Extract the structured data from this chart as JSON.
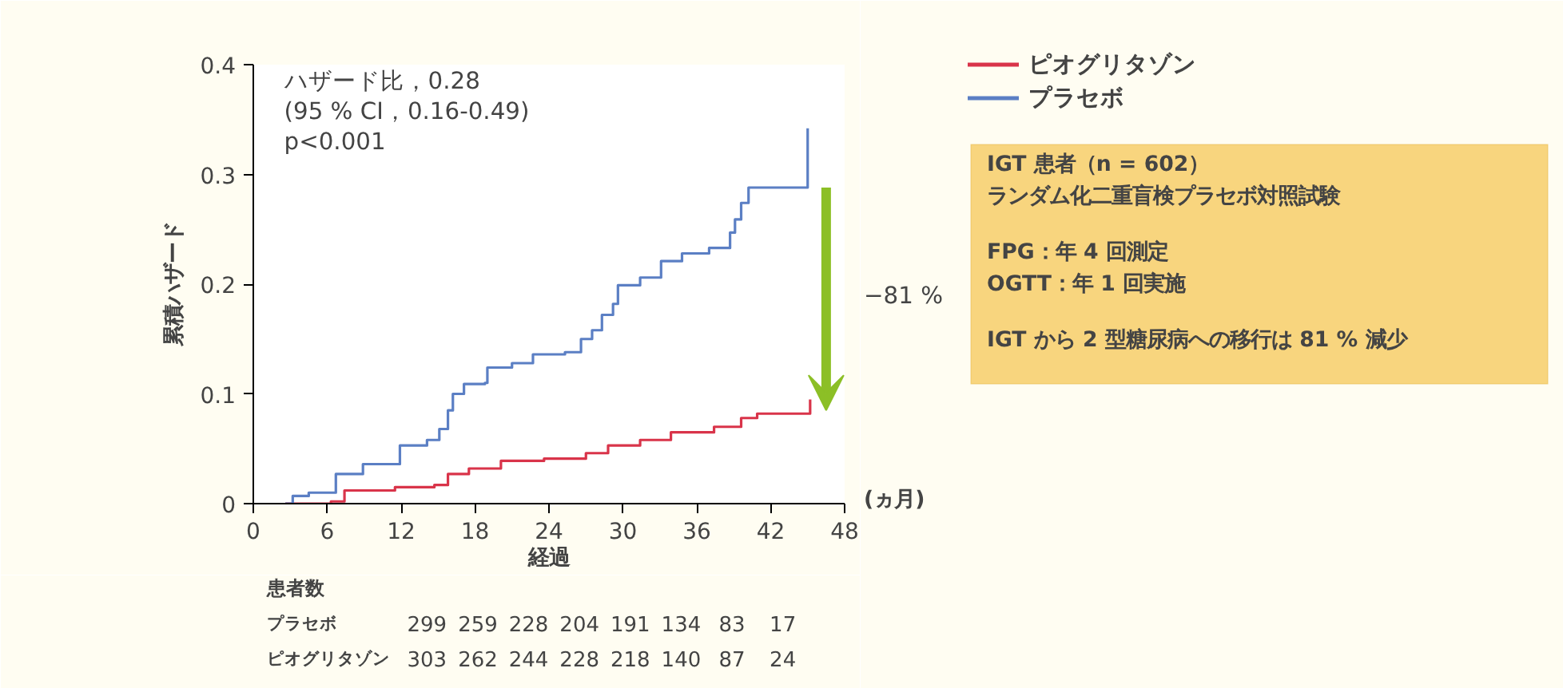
{
  "chart_data": {
    "type": "step",
    "xlabel": "経過",
    "ylabel": "累積ハザード",
    "xlim": [
      0,
      48
    ],
    "xticks": [
      0,
      6,
      12,
      18,
      24,
      30,
      36,
      42,
      48
    ],
    "ylim": [
      0,
      0.4
    ],
    "yticks": [
      0,
      0.1,
      0.2,
      0.3,
      0.4
    ],
    "grid": false,
    "legend": "top right",
    "series": [
      {
        "name": "ピオグリタゾン",
        "color": "#d9344a",
        "x": [
          2.6,
          6.3,
          7.4,
          11.5,
          14.7,
          15.8,
          17.5,
          20.1,
          23.6,
          27.0,
          28.8,
          31.4,
          33.9,
          37.4,
          39.6,
          40.9,
          45.0,
          45.2
        ],
        "values": [
          0,
          0.002,
          0.012,
          0.015,
          0.017,
          0.027,
          0.032,
          0.039,
          0.041,
          0.046,
          0.053,
          0.058,
          0.065,
          0.07,
          0.078,
          0.082,
          0.082,
          0.095
        ]
      },
      {
        "name": "プラセボ",
        "color": "#5b7fc4",
        "x": [
          2.6,
          3.2,
          4.5,
          6.7,
          8.9,
          11.9,
          14.1,
          15.1,
          15.8,
          16.2,
          17.1,
          18.8,
          19.0,
          21.0,
          22.7,
          25.3,
          26.6,
          27.5,
          28.3,
          29.2,
          29.6,
          31.4,
          33.1,
          34.8,
          37.0,
          38.7,
          39.1,
          39.6,
          40.2,
          44.8,
          45.0
        ],
        "values": [
          0,
          0.007,
          0.01,
          0.027,
          0.036,
          0.053,
          0.058,
          0.068,
          0.085,
          0.1,
          0.109,
          0.11,
          0.124,
          0.128,
          0.136,
          0.138,
          0.15,
          0.158,
          0.172,
          0.182,
          0.199,
          0.206,
          0.221,
          0.228,
          0.233,
          0.247,
          0.259,
          0.274,
          0.288,
          0.288,
          0.342
        ]
      }
    ],
    "annotations": [
      "ハザード比，0.28\n(95 % CI，0.16-0.49)\np<0.001",
      "−81 %",
      "(ヵ月)",
      "IGT 患者（n = 602）",
      "ランダム化二重盲検プラセボ対照試験",
      "FPG：年 4 回測定",
      "OGTT：年 1 回実施",
      "IGT から 2 型糖尿病への移行は 81 % 減少",
      "患者数",
      "プラセボ 299 259 228 204 191 134 83 17",
      "ピオグリタゾン 303 262 244 228 218 140 87 24"
    ]
  }
}
